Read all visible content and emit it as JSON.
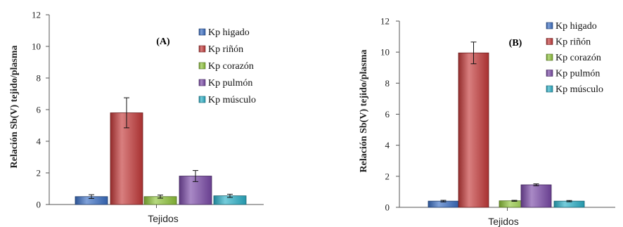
{
  "chart_data": [
    {
      "type": "bar",
      "panel_label": "(A)",
      "xlabel": "Tejidos",
      "ylabel": "Relación  Sb(V) tejido/plasma",
      "ylim": [
        0,
        12
      ],
      "yticks": [
        "0",
        "2",
        "4",
        "6",
        "8",
        "10",
        "12"
      ],
      "legend_position": "top-right",
      "series": [
        {
          "name": "Kp higado",
          "value": 0.5,
          "error": 0.12,
          "color": "#3a6fc4"
        },
        {
          "name": "Kp riñón",
          "value": 5.8,
          "error": 0.95,
          "color": "#c43a3a"
        },
        {
          "name": "Kp corazón",
          "value": 0.5,
          "error": 0.1,
          "color": "#8fc43a"
        },
        {
          "name": "Kp pulmón",
          "value": 1.8,
          "error": 0.35,
          "color": "#7a4aa8"
        },
        {
          "name": "Kp músculo",
          "value": 0.55,
          "error": 0.1,
          "color": "#2ab0c8"
        }
      ]
    },
    {
      "type": "bar",
      "panel_label": "(B)",
      "xlabel": "Tejidos",
      "ylabel": "Relación Sb(V)  tejido/plasma",
      "ylim": [
        0,
        12
      ],
      "yticks": [
        "0",
        "2",
        "4",
        "6",
        "8",
        "10",
        "12"
      ],
      "legend_position": "top-right",
      "series": [
        {
          "name": "Kp higado",
          "value": 0.4,
          "error": 0.05,
          "color": "#3a6fc4"
        },
        {
          "name": "Kp riñón",
          "value": 9.95,
          "error": 0.7,
          "color": "#c43a3a"
        },
        {
          "name": "Kp corazón",
          "value": 0.42,
          "error": 0.03,
          "color": "#8fc43a"
        },
        {
          "name": "Kp pulmón",
          "value": 1.45,
          "error": 0.06,
          "color": "#7a4aa8"
        },
        {
          "name": "Kp músculo",
          "value": 0.4,
          "error": 0.04,
          "color": "#2ab0c8"
        }
      ]
    }
  ]
}
